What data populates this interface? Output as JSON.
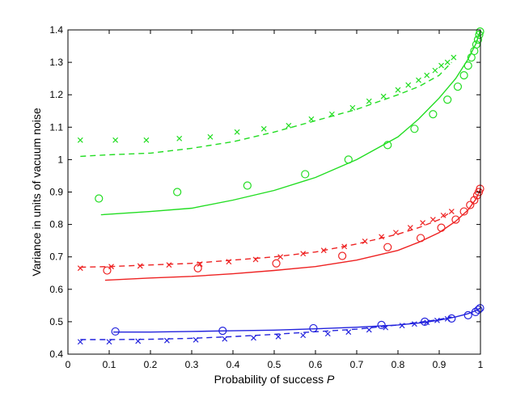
{
  "chart_data": {
    "type": "scatter",
    "title": "",
    "xlabel": "Probability of success",
    "xlabel_symbol": "P",
    "ylabel": "Variance in units of vacuum noise",
    "xlim": [
      0,
      1
    ],
    "ylim": [
      0.4,
      1.4
    ],
    "xticks": [
      "0",
      "0.1",
      "0.2",
      "0.3",
      "0.4",
      "0.5",
      "0.6",
      "0.7",
      "0.8",
      "0.9",
      "1"
    ],
    "yticks": [
      "0.4",
      "0.5",
      "0.6",
      "0.7",
      "0.8",
      "0.9",
      "1",
      "1.1",
      "1.2",
      "1.3",
      "1.4"
    ],
    "grid": false,
    "legend": "none",
    "colors": {
      "green": "#22dd22",
      "red": "#ee2222",
      "blue": "#2222dd"
    },
    "series": [
      {
        "color": "green",
        "style": "solid",
        "x": [
          0.08,
          0.2,
          0.3,
          0.4,
          0.5,
          0.6,
          0.7,
          0.8,
          0.85,
          0.9,
          0.94,
          0.97,
          0.99,
          1.0
        ],
        "y": [
          0.83,
          0.84,
          0.85,
          0.875,
          0.905,
          0.945,
          1.0,
          1.07,
          1.125,
          1.19,
          1.25,
          1.31,
          1.36,
          1.4
        ]
      },
      {
        "color": "green",
        "style": "dashed",
        "x": [
          0.03,
          0.1,
          0.2,
          0.3,
          0.4,
          0.5,
          0.6,
          0.7,
          0.8,
          0.85,
          0.9,
          0.93
        ],
        "y": [
          1.01,
          1.015,
          1.02,
          1.035,
          1.055,
          1.085,
          1.12,
          1.155,
          1.2,
          1.225,
          1.26,
          1.3
        ]
      },
      {
        "color": "green",
        "style": "circle",
        "x": [
          0.075,
          0.265,
          0.435,
          0.575,
          0.68,
          0.775,
          0.84,
          0.885,
          0.92,
          0.945,
          0.96,
          0.97,
          0.978,
          0.985,
          0.99,
          0.994,
          0.997,
          0.999
        ],
        "y": [
          0.88,
          0.9,
          0.92,
          0.955,
          1.0,
          1.045,
          1.095,
          1.14,
          1.185,
          1.225,
          1.26,
          1.29,
          1.315,
          1.335,
          1.355,
          1.37,
          1.385,
          1.395
        ]
      },
      {
        "color": "green",
        "style": "cross",
        "x": [
          0.03,
          0.115,
          0.19,
          0.27,
          0.345,
          0.41,
          0.475,
          0.535,
          0.59,
          0.64,
          0.69,
          0.73,
          0.765,
          0.8,
          0.825,
          0.85,
          0.87,
          0.89,
          0.905,
          0.92,
          0.935
        ],
        "y": [
          1.06,
          1.06,
          1.06,
          1.065,
          1.07,
          1.085,
          1.095,
          1.105,
          1.125,
          1.14,
          1.16,
          1.18,
          1.195,
          1.215,
          1.23,
          1.245,
          1.26,
          1.275,
          1.29,
          1.3,
          1.315
        ]
      },
      {
        "color": "red",
        "style": "solid",
        "x": [
          0.09,
          0.2,
          0.3,
          0.4,
          0.5,
          0.6,
          0.7,
          0.8,
          0.85,
          0.9,
          0.94,
          0.97,
          0.99,
          1.0
        ],
        "y": [
          0.628,
          0.635,
          0.64,
          0.648,
          0.658,
          0.67,
          0.69,
          0.72,
          0.745,
          0.775,
          0.81,
          0.845,
          0.88,
          0.91
        ]
      },
      {
        "color": "red",
        "style": "dashed",
        "x": [
          0.03,
          0.1,
          0.2,
          0.3,
          0.4,
          0.5,
          0.6,
          0.7,
          0.8,
          0.85,
          0.9,
          0.93
        ],
        "y": [
          0.668,
          0.67,
          0.675,
          0.68,
          0.69,
          0.7,
          0.715,
          0.74,
          0.77,
          0.79,
          0.815,
          0.84
        ]
      },
      {
        "color": "red",
        "style": "circle",
        "x": [
          0.095,
          0.315,
          0.505,
          0.665,
          0.775,
          0.855,
          0.905,
          0.94,
          0.96,
          0.975,
          0.985,
          0.992,
          0.996,
          0.999
        ],
        "y": [
          0.658,
          0.665,
          0.68,
          0.703,
          0.73,
          0.758,
          0.79,
          0.815,
          0.84,
          0.86,
          0.875,
          0.89,
          0.9,
          0.91
        ]
      },
      {
        "color": "red",
        "style": "cross",
        "x": [
          0.03,
          0.105,
          0.175,
          0.245,
          0.32,
          0.39,
          0.455,
          0.515,
          0.57,
          0.62,
          0.67,
          0.72,
          0.76,
          0.795,
          0.83,
          0.86,
          0.885,
          0.91,
          0.93
        ],
        "y": [
          0.665,
          0.67,
          0.672,
          0.675,
          0.678,
          0.685,
          0.692,
          0.7,
          0.71,
          0.72,
          0.732,
          0.748,
          0.762,
          0.775,
          0.79,
          0.805,
          0.815,
          0.828,
          0.84
        ]
      },
      {
        "color": "blue",
        "style": "solid",
        "x": [
          0.11,
          0.2,
          0.3,
          0.4,
          0.5,
          0.6,
          0.7,
          0.8,
          0.86,
          0.9,
          0.94,
          0.97,
          0.99,
          1.0
        ],
        "y": [
          0.468,
          0.468,
          0.47,
          0.472,
          0.474,
          0.478,
          0.483,
          0.49,
          0.497,
          0.505,
          0.515,
          0.525,
          0.535,
          0.543
        ]
      },
      {
        "color": "blue",
        "style": "dashed",
        "x": [
          0.03,
          0.1,
          0.2,
          0.3,
          0.4,
          0.5,
          0.6,
          0.7,
          0.8,
          0.85,
          0.9,
          0.93
        ],
        "y": [
          0.445,
          0.445,
          0.446,
          0.449,
          0.454,
          0.461,
          0.469,
          0.477,
          0.49,
          0.498,
          0.507,
          0.515
        ]
      },
      {
        "color": "blue",
        "style": "circle",
        "x": [
          0.115,
          0.375,
          0.595,
          0.76,
          0.865,
          0.93,
          0.97,
          0.988,
          0.995,
          0.999
        ],
        "y": [
          0.47,
          0.472,
          0.48,
          0.49,
          0.5,
          0.51,
          0.52,
          0.53,
          0.537,
          0.542
        ]
      },
      {
        "color": "blue",
        "style": "cross",
        "x": [
          0.03,
          0.1,
          0.17,
          0.24,
          0.31,
          0.38,
          0.45,
          0.51,
          0.57,
          0.63,
          0.68,
          0.73,
          0.77,
          0.81,
          0.84,
          0.87,
          0.895,
          0.92
        ],
        "y": [
          0.438,
          0.438,
          0.44,
          0.442,
          0.444,
          0.447,
          0.45,
          0.454,
          0.458,
          0.463,
          0.468,
          0.475,
          0.482,
          0.488,
          0.493,
          0.498,
          0.504,
          0.509
        ]
      }
    ]
  }
}
